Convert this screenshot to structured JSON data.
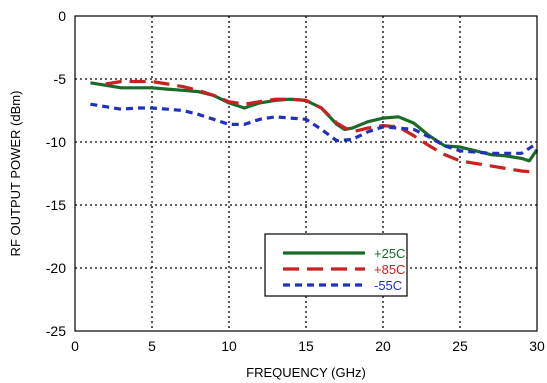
{
  "chart_data": {
    "type": "line",
    "title": "",
    "xlabel": "FREQUENCY (GHz)",
    "ylabel": "RF OUTPUT POWER  (dBm)",
    "xlim": [
      0,
      30
    ],
    "ylim": [
      -25,
      0
    ],
    "xticks": [
      0,
      5,
      10,
      15,
      20,
      25,
      30
    ],
    "yticks": [
      0,
      -5,
      -10,
      -15,
      -20,
      -25
    ],
    "grid": true,
    "legend_position": "lower-center",
    "series": [
      {
        "name": "+25C",
        "color": "#1a6b2a",
        "dash": "solid",
        "x": [
          1,
          2,
          3,
          4,
          5,
          6,
          7,
          8,
          9,
          10,
          11,
          12,
          13,
          14,
          15,
          16,
          17,
          17.5,
          18,
          19,
          20,
          21,
          22,
          23,
          24,
          25,
          26,
          27,
          28,
          29,
          29.5,
          30
        ],
        "y": [
          -5.3,
          -5.5,
          -5.7,
          -5.7,
          -5.7,
          -5.8,
          -5.9,
          -6.0,
          -6.3,
          -6.9,
          -7.3,
          -6.9,
          -6.7,
          -6.6,
          -6.7,
          -7.3,
          -8.6,
          -9.0,
          -8.9,
          -8.4,
          -8.1,
          -8.0,
          -8.5,
          -9.5,
          -10.3,
          -10.4,
          -10.7,
          -11.0,
          -11.1,
          -11.3,
          -11.5,
          -10.6
        ]
      },
      {
        "name": "+85C",
        "color": "#cc1f1f",
        "dash": "long",
        "x": [
          2,
          3,
          4,
          5,
          6,
          7,
          8,
          9,
          10,
          11,
          12,
          13,
          14,
          15,
          16,
          17,
          18,
          19,
          20,
          21,
          22,
          23,
          24,
          25,
          26,
          27,
          28,
          29,
          30
        ],
        "y": [
          -5.4,
          -5.2,
          -5.2,
          -5.2,
          -5.4,
          -5.6,
          -5.9,
          -6.3,
          -6.8,
          -7.0,
          -6.8,
          -6.6,
          -6.6,
          -6.7,
          -7.3,
          -8.5,
          -9.2,
          -8.9,
          -8.7,
          -8.8,
          -9.5,
          -10.3,
          -11.0,
          -11.5,
          -11.7,
          -11.9,
          -12.1,
          -12.3,
          -12.4
        ]
      },
      {
        "name": "-55C",
        "color": "#2030c0",
        "dash": "short",
        "x": [
          1,
          2,
          3,
          4,
          5,
          6,
          7,
          8,
          9,
          10,
          11,
          12,
          13,
          14,
          15,
          16,
          17,
          18,
          19,
          20,
          21,
          22,
          23,
          24,
          25,
          26,
          27,
          28,
          29,
          29.5,
          30
        ],
        "y": [
          -7.0,
          -7.2,
          -7.4,
          -7.3,
          -7.3,
          -7.4,
          -7.5,
          -7.8,
          -8.2,
          -8.6,
          -8.6,
          -8.2,
          -8.0,
          -8.1,
          -8.2,
          -9.0,
          -9.9,
          -9.8,
          -9.2,
          -8.8,
          -8.9,
          -9.0,
          -9.6,
          -10.3,
          -10.7,
          -10.8,
          -10.9,
          -10.9,
          -10.9,
          -10.5,
          -10.1
        ]
      }
    ]
  }
}
